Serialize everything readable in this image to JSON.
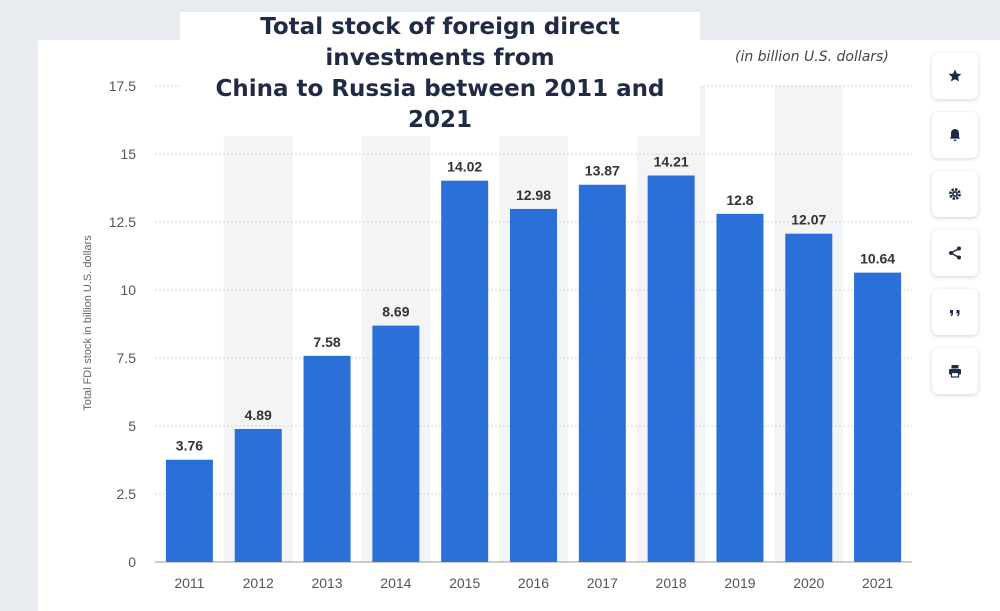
{
  "title_line1": "Total stock of foreign direct investments from",
  "title_line2": "China to Russia between 2011 and 2021",
  "subtitle": "(in billion U.S. dollars)",
  "toolbar": {
    "icons": [
      "star-icon",
      "bell-icon",
      "gear-icon",
      "share-icon",
      "quote-icon",
      "print-icon"
    ]
  },
  "colors": {
    "bar": "#2b6fd8",
    "grid": "#cfd4dc",
    "stripe": "#f3f4f6",
    "axis_text": "#555555",
    "label_text": "#333333"
  },
  "chart_data": {
    "type": "bar",
    "categories": [
      "2011",
      "2012",
      "2013",
      "2014",
      "2015",
      "2016",
      "2017",
      "2018",
      "2019",
      "2020",
      "2021"
    ],
    "values": [
      3.76,
      4.89,
      7.58,
      8.69,
      14.02,
      12.98,
      13.87,
      14.21,
      12.8,
      12.07,
      10.64
    ],
    "data_labels": [
      "3.76",
      "4.89",
      "7.58",
      "8.69",
      "14.02",
      "12.98",
      "13.87",
      "14.21",
      "12.8",
      "12.07",
      "10.64"
    ],
    "ylabel": "Total FDI stock in billion U.S. dollars",
    "xlabel": "",
    "ylim": [
      0,
      17.5
    ],
    "yticks": [
      0,
      2.5,
      5,
      7.5,
      10,
      12.5,
      15,
      17.5
    ],
    "ytick_labels": [
      "0",
      "2.5",
      "5",
      "7.5",
      "10",
      "12.5",
      "15",
      "17.5"
    ],
    "grid": true,
    "legend": "none"
  }
}
